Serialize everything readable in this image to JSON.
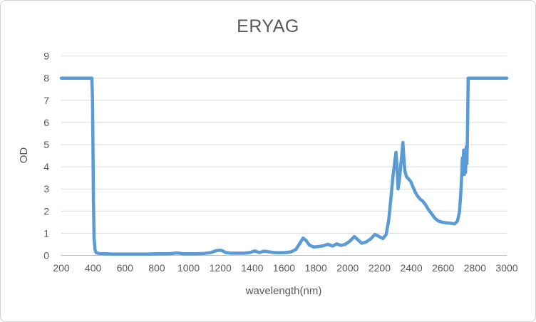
{
  "chart": {
    "title": "ERYAG",
    "x_axis_title": "wavelength(nm)",
    "y_axis_title": "OD"
  },
  "chart_data": {
    "type": "line",
    "title": "ERYAG",
    "xlabel": "wavelength(nm)",
    "ylabel": "OD",
    "xlim": [
      200,
      3000
    ],
    "ylim": [
      0,
      9
    ],
    "x_ticks": [
      200,
      400,
      600,
      800,
      1000,
      1200,
      1400,
      1600,
      1800,
      2000,
      2200,
      2400,
      2600,
      2800,
      3000
    ],
    "y_ticks": [
      0,
      1,
      2,
      3,
      4,
      5,
      6,
      7,
      8,
      9
    ],
    "grid": "horizontal-only",
    "legend_position": "none",
    "line_color": "#5B9BD5",
    "gridline_color": "#D9D9D9",
    "axis_line_color": "#BFBFBF",
    "text_color": "#595959",
    "series": [
      {
        "name": "OD",
        "points": [
          [
            200,
            8
          ],
          [
            392,
            8
          ],
          [
            396,
            7
          ],
          [
            399,
            5
          ],
          [
            402,
            2.5
          ],
          [
            406,
            0.8
          ],
          [
            412,
            0.25
          ],
          [
            420,
            0.12
          ],
          [
            440,
            0.08
          ],
          [
            480,
            0.07
          ],
          [
            520,
            0.06
          ],
          [
            560,
            0.06
          ],
          [
            600,
            0.06
          ],
          [
            650,
            0.06
          ],
          [
            700,
            0.06
          ],
          [
            750,
            0.06
          ],
          [
            800,
            0.07
          ],
          [
            850,
            0.07
          ],
          [
            890,
            0.08
          ],
          [
            920,
            0.11
          ],
          [
            940,
            0.1
          ],
          [
            970,
            0.07
          ],
          [
            1000,
            0.07
          ],
          [
            1050,
            0.07
          ],
          [
            1100,
            0.09
          ],
          [
            1140,
            0.13
          ],
          [
            1175,
            0.22
          ],
          [
            1205,
            0.23
          ],
          [
            1235,
            0.13
          ],
          [
            1270,
            0.1
          ],
          [
            1310,
            0.1
          ],
          [
            1350,
            0.1
          ],
          [
            1385,
            0.13
          ],
          [
            1415,
            0.2
          ],
          [
            1445,
            0.13
          ],
          [
            1475,
            0.19
          ],
          [
            1505,
            0.16
          ],
          [
            1535,
            0.13
          ],
          [
            1570,
            0.12
          ],
          [
            1610,
            0.13
          ],
          [
            1645,
            0.16
          ],
          [
            1675,
            0.27
          ],
          [
            1700,
            0.55
          ],
          [
            1720,
            0.78
          ],
          [
            1738,
            0.68
          ],
          [
            1758,
            0.47
          ],
          [
            1785,
            0.38
          ],
          [
            1815,
            0.4
          ],
          [
            1845,
            0.43
          ],
          [
            1875,
            0.5
          ],
          [
            1905,
            0.42
          ],
          [
            1932,
            0.52
          ],
          [
            1958,
            0.45
          ],
          [
            1985,
            0.5
          ],
          [
            2015,
            0.65
          ],
          [
            2042,
            0.85
          ],
          [
            2062,
            0.72
          ],
          [
            2088,
            0.55
          ],
          [
            2115,
            0.6
          ],
          [
            2145,
            0.75
          ],
          [
            2172,
            0.95
          ],
          [
            2198,
            0.85
          ],
          [
            2222,
            0.76
          ],
          [
            2242,
            0.95
          ],
          [
            2258,
            1.6
          ],
          [
            2272,
            2.6
          ],
          [
            2285,
            3.6
          ],
          [
            2297,
            4.3
          ],
          [
            2304,
            4.65
          ],
          [
            2310,
            4.0
          ],
          [
            2317,
            3.0
          ],
          [
            2325,
            3.4
          ],
          [
            2333,
            4.0
          ],
          [
            2341,
            4.6
          ],
          [
            2347,
            5.1
          ],
          [
            2353,
            4.4
          ],
          [
            2360,
            3.8
          ],
          [
            2370,
            3.55
          ],
          [
            2382,
            3.45
          ],
          [
            2395,
            3.35
          ],
          [
            2410,
            3.1
          ],
          [
            2425,
            2.85
          ],
          [
            2442,
            2.65
          ],
          [
            2458,
            2.52
          ],
          [
            2472,
            2.45
          ],
          [
            2488,
            2.3
          ],
          [
            2505,
            2.1
          ],
          [
            2525,
            1.9
          ],
          [
            2548,
            1.68
          ],
          [
            2570,
            1.55
          ],
          [
            2595,
            1.5
          ],
          [
            2620,
            1.47
          ],
          [
            2648,
            1.45
          ],
          [
            2672,
            1.42
          ],
          [
            2690,
            1.55
          ],
          [
            2702,
            1.95
          ],
          [
            2710,
            2.7
          ],
          [
            2716,
            3.5
          ],
          [
            2721,
            4.4
          ],
          [
            2725,
            3.7
          ],
          [
            2729,
            4.75
          ],
          [
            2733,
            3.65
          ],
          [
            2737,
            4.7
          ],
          [
            2741,
            3.75
          ],
          [
            2745,
            4.9
          ],
          [
            2749,
            4.15
          ],
          [
            2752,
            5.0
          ],
          [
            2755,
            6.5
          ],
          [
            2757,
            8
          ],
          [
            3000,
            8
          ]
        ]
      }
    ]
  }
}
